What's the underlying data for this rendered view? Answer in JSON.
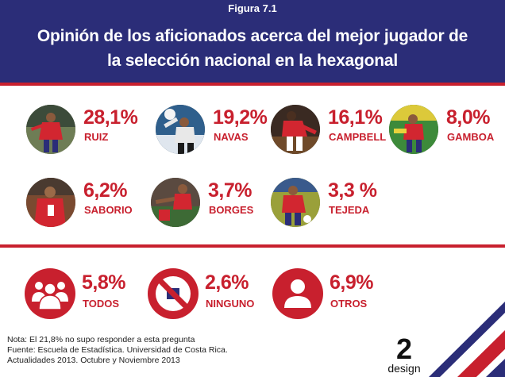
{
  "header": {
    "figure_label": "Figura 7.1",
    "title_line1": "Opinión de los aficionados acerca del mejor jugador de",
    "title_line2": "la selección nacional en la hexagonal"
  },
  "chart_data": {
    "type": "pictogram",
    "title": "Opinión de los aficionados acerca del mejor jugador de la selección nacional en la hexagonal",
    "unit": "%",
    "players": [
      {
        "name": "RUIZ",
        "value": 28.1,
        "label": "28,1%"
      },
      {
        "name": "NAVAS",
        "value": 19.2,
        "label": "19,2%"
      },
      {
        "name": "CAMPBELL",
        "value": 16.1,
        "label": "16,1%"
      },
      {
        "name": "GAMBOA",
        "value": 8.0,
        "label": "8,0%"
      },
      {
        "name": "SABORIO",
        "value": 6.2,
        "label": "6,2%"
      },
      {
        "name": "BORGES",
        "value": 3.7,
        "label": "3,7%"
      },
      {
        "name": "TEJEDA",
        "value": 3.3,
        "label": "3,3 %"
      }
    ],
    "other_options": [
      {
        "name": "TODOS",
        "value": 5.8,
        "label": "5,8%",
        "icon": "group-people-icon"
      },
      {
        "name": "NINGUNO",
        "value": 2.6,
        "label": "2,6%",
        "icon": "prohibited-icon"
      },
      {
        "name": "OTROS",
        "value": 6.9,
        "label": "6,9%",
        "icon": "person-icon"
      }
    ]
  },
  "notes": {
    "line1": "Nota: El 21,8% no supo responder a esta pregunta",
    "line2": "Fuente: Escuela de Estadística. Universidad de Costa Rica.",
    "line3": "Actualidades 2013. Octubre y Noviembre 2013"
  },
  "logo": {
    "number": "2",
    "word": "design"
  },
  "colors": {
    "header_bg": "#2b2d78",
    "accent_red": "#c8202e",
    "jersey_red": "#d22630",
    "flag_blue": "#2b2d78",
    "flag_red": "#c8202e"
  }
}
